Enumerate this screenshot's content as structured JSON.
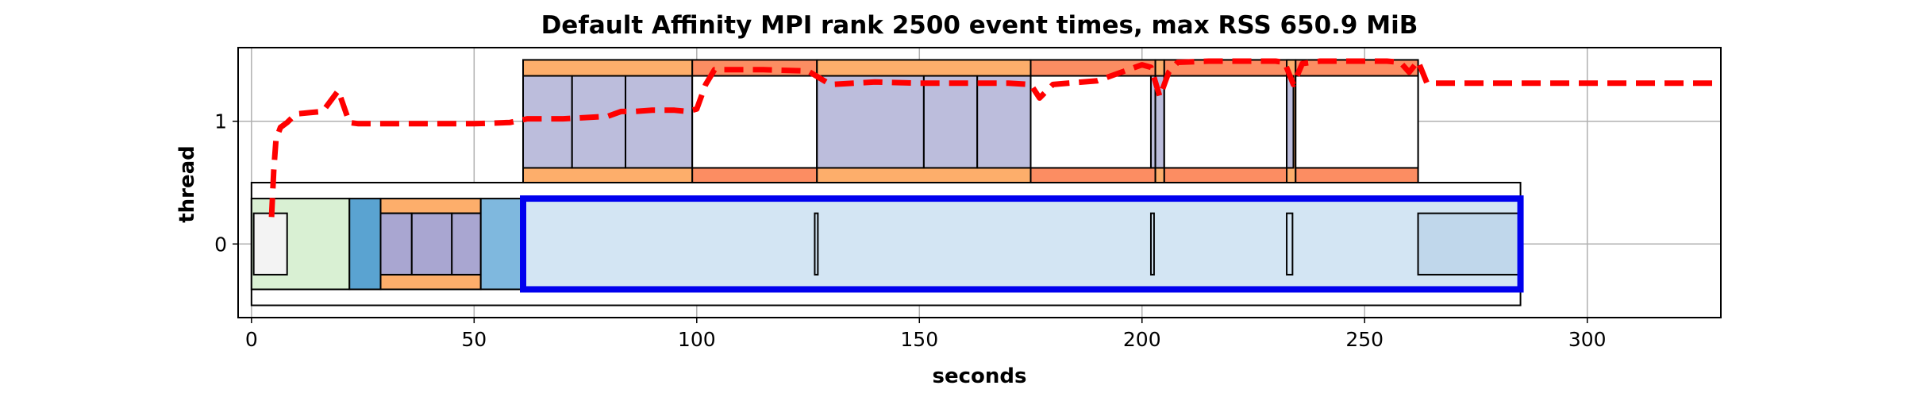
{
  "chart_data": {
    "type": "timeline",
    "title": "Default Affinity MPI rank 2500 event times, max RSS 650.9 MiB",
    "xlabel": "seconds",
    "ylabel": "thread",
    "xlim": [
      -3,
      330
    ],
    "ylim": [
      -0.6,
      1.6
    ],
    "xticks": [
      0,
      50,
      100,
      150,
      200,
      250,
      300
    ],
    "yticks": [
      0,
      1
    ],
    "grid": true,
    "rects": [
      {
        "x0": 0,
        "x1": 285,
        "y0": -0.5,
        "y1": 0.5,
        "fill": "#ffffff"
      },
      {
        "x0": 0,
        "x1": 22,
        "y0": -0.37,
        "y1": 0.37,
        "fill": "#d9f0d3"
      },
      {
        "x0": 22,
        "x1": 29,
        "y0": -0.37,
        "y1": 0.37,
        "fill": "#5aa3d1"
      },
      {
        "x0": 29,
        "x1": 51.5,
        "y0": -0.37,
        "y1": 0.37,
        "fill": "#fdae6b"
      },
      {
        "x0": 29,
        "x1": 51.5,
        "y0": -0.25,
        "y1": 0.25,
        "fill": "#a9a6d1"
      },
      {
        "x0": 29,
        "x1": 36,
        "y0": -0.25,
        "y1": 0.25,
        "fill": "#a9a6d1"
      },
      {
        "x0": 36,
        "x1": 45,
        "y0": -0.25,
        "y1": 0.25,
        "fill": "#a9a6d1"
      },
      {
        "x0": 45,
        "x1": 51.5,
        "y0": -0.25,
        "y1": 0.25,
        "fill": "#a9a6d1"
      },
      {
        "x0": 51.5,
        "x1": 61,
        "y0": -0.37,
        "y1": 0.37,
        "fill": "#7fb8de"
      },
      {
        "x0": 0.5,
        "x1": 8,
        "y0": -0.25,
        "y1": 0.25,
        "fill": "#f3f3f3"
      },
      {
        "x0": 61,
        "x1": 285,
        "y0": -0.37,
        "y1": 0.37,
        "fill": "#d3e5f3"
      },
      {
        "x0": 126.5,
        "x1": 127.2,
        "y0": -0.25,
        "y1": 0.25,
        "fill": "#d3e5f3"
      },
      {
        "x0": 202,
        "x1": 202.7,
        "y0": -0.25,
        "y1": 0.25,
        "fill": "#d3e5f3"
      },
      {
        "x0": 232.5,
        "x1": 233.8,
        "y0": -0.25,
        "y1": 0.25,
        "fill": "#d3e5f3"
      },
      {
        "x0": 262,
        "x1": 285,
        "y0": -0.25,
        "y1": 0.25,
        "fill": "#c0d7eb"
      },
      {
        "x0": 61,
        "x1": 262,
        "y0": 0.5,
        "y1": 1.5,
        "fill": "#ffffff"
      },
      {
        "x0": 61,
        "x1": 99,
        "y0": 0.5,
        "y1": 1.5,
        "fill": "#fdae6b"
      },
      {
        "x0": 61,
        "x1": 72,
        "y0": 0.62,
        "y1": 1.37,
        "fill": "#bcbddc"
      },
      {
        "x0": 72,
        "x1": 84,
        "y0": 0.62,
        "y1": 1.37,
        "fill": "#bcbddc"
      },
      {
        "x0": 84,
        "x1": 99,
        "y0": 0.62,
        "y1": 1.37,
        "fill": "#bcbddc"
      },
      {
        "x0": 99,
        "x1": 127,
        "y0": 0.5,
        "y1": 1.5,
        "fill": "#fc8d62"
      },
      {
        "x0": 99,
        "x1": 127,
        "y0": 0.62,
        "y1": 1.37,
        "fill": "#ffffff"
      },
      {
        "x0": 127,
        "x1": 175,
        "y0": 0.5,
        "y1": 1.5,
        "fill": "#fdae6b"
      },
      {
        "x0": 127,
        "x1": 151,
        "y0": 0.62,
        "y1": 1.37,
        "fill": "#bcbddc"
      },
      {
        "x0": 151,
        "x1": 163,
        "y0": 0.62,
        "y1": 1.37,
        "fill": "#bcbddc"
      },
      {
        "x0": 163,
        "x1": 175,
        "y0": 0.62,
        "y1": 1.37,
        "fill": "#bcbddc"
      },
      {
        "x0": 175,
        "x1": 203,
        "y0": 0.5,
        "y1": 1.5,
        "fill": "#fc8d62"
      },
      {
        "x0": 175,
        "x1": 202,
        "y0": 0.62,
        "y1": 1.37,
        "fill": "#ffffff"
      },
      {
        "x0": 202,
        "x1": 203,
        "y0": 0.62,
        "y1": 1.37,
        "fill": "#bcbddc"
      },
      {
        "x0": 203,
        "x1": 205,
        "y0": 0.5,
        "y1": 1.5,
        "fill": "#fdae6b"
      },
      {
        "x0": 203,
        "x1": 205,
        "y0": 0.62,
        "y1": 1.37,
        "fill": "#bcbddc"
      },
      {
        "x0": 205,
        "x1": 233,
        "y0": 0.5,
        "y1": 1.5,
        "fill": "#fc8d62"
      },
      {
        "x0": 205,
        "x1": 232.5,
        "y0": 0.62,
        "y1": 1.37,
        "fill": "#ffffff"
      },
      {
        "x0": 232.5,
        "x1": 234.5,
        "y0": 0.5,
        "y1": 1.5,
        "fill": "#fdae6b"
      },
      {
        "x0": 232.5,
        "x1": 234,
        "y0": 0.62,
        "y1": 1.37,
        "fill": "#bcbddc"
      },
      {
        "x0": 234.5,
        "x1": 262,
        "y0": 0.5,
        "y1": 1.5,
        "fill": "#fc8d62"
      },
      {
        "x0": 234.5,
        "x1": 262,
        "y0": 0.62,
        "y1": 1.37,
        "fill": "#ffffff"
      }
    ],
    "highlight": {
      "x0": 61,
      "x1": 285,
      "y0": -0.37,
      "y1": 0.37,
      "stroke": "#0000ee"
    },
    "rss_line": {
      "color": "#ff0000",
      "x": [
        4.5,
        5,
        5.5,
        6.5,
        8,
        10,
        13,
        16,
        19.5,
        22,
        24,
        30,
        40,
        50,
        58,
        62,
        70,
        80,
        83,
        86,
        90,
        95,
        98,
        100,
        102,
        104,
        107,
        115,
        125,
        130,
        140,
        150,
        160,
        170,
        175,
        177,
        180,
        190,
        200,
        202,
        204,
        206,
        208,
        215,
        225,
        230,
        232,
        234,
        236,
        240,
        250,
        255,
        258,
        260,
        262,
        264,
        270,
        280,
        300,
        330
      ],
      "y": [
        0.22,
        0.6,
        0.85,
        0.95,
        0.99,
        1.06,
        1.07,
        1.08,
        1.25,
        0.99,
        0.98,
        0.98,
        0.98,
        0.98,
        0.99,
        1.02,
        1.02,
        1.04,
        1.08,
        1.08,
        1.09,
        1.09,
        1.08,
        1.1,
        1.3,
        1.42,
        1.42,
        1.42,
        1.41,
        1.3,
        1.32,
        1.31,
        1.31,
        1.31,
        1.3,
        1.19,
        1.3,
        1.33,
        1.46,
        1.44,
        1.2,
        1.4,
        1.48,
        1.49,
        1.49,
        1.49,
        1.48,
        1.3,
        1.47,
        1.49,
        1.49,
        1.49,
        1.48,
        1.4,
        1.49,
        1.31,
        1.31,
        1.31,
        1.31,
        1.31
      ]
    }
  }
}
